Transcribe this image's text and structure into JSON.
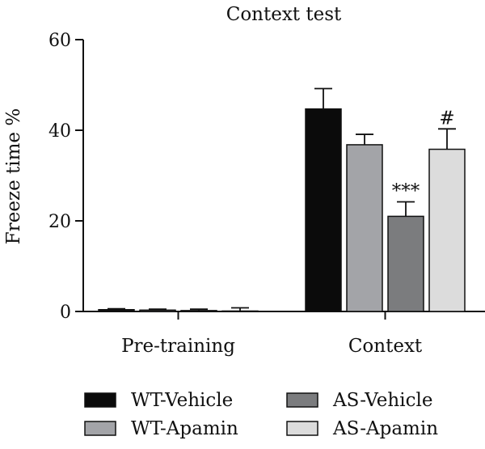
{
  "chart_data": {
    "type": "bar",
    "title": "Context test",
    "ylabel": "Freeze time %",
    "xlabel": "",
    "ylim": [
      0,
      60
    ],
    "yticks": [
      0,
      20,
      40,
      60
    ],
    "grid": false,
    "legend_position": "bottom",
    "categories": [
      "Pre-training",
      "Context"
    ],
    "series": [
      {
        "name": "WT-Vehicle",
        "color": "#0b0b0b",
        "values": [
          0.4,
          44.7
        ],
        "errors": [
          0.2,
          4.5
        ],
        "annotations": [
          "",
          ""
        ]
      },
      {
        "name": "WT-Apamin",
        "color": "#a3a4a8",
        "values": [
          0.3,
          36.8
        ],
        "errors": [
          0.2,
          2.3
        ],
        "annotations": [
          "",
          ""
        ]
      },
      {
        "name": "AS-Vehicle",
        "color": "#7b7c7e",
        "values": [
          0.2,
          21.0
        ],
        "errors": [
          0.3,
          3.2
        ],
        "annotations": [
          "",
          "***"
        ]
      },
      {
        "name": "AS-Apamin",
        "color": "#dcdcdc",
        "values": [
          0.1,
          35.8
        ],
        "errors": [
          0.7,
          4.5
        ],
        "annotations": [
          "",
          "#"
        ]
      }
    ]
  }
}
